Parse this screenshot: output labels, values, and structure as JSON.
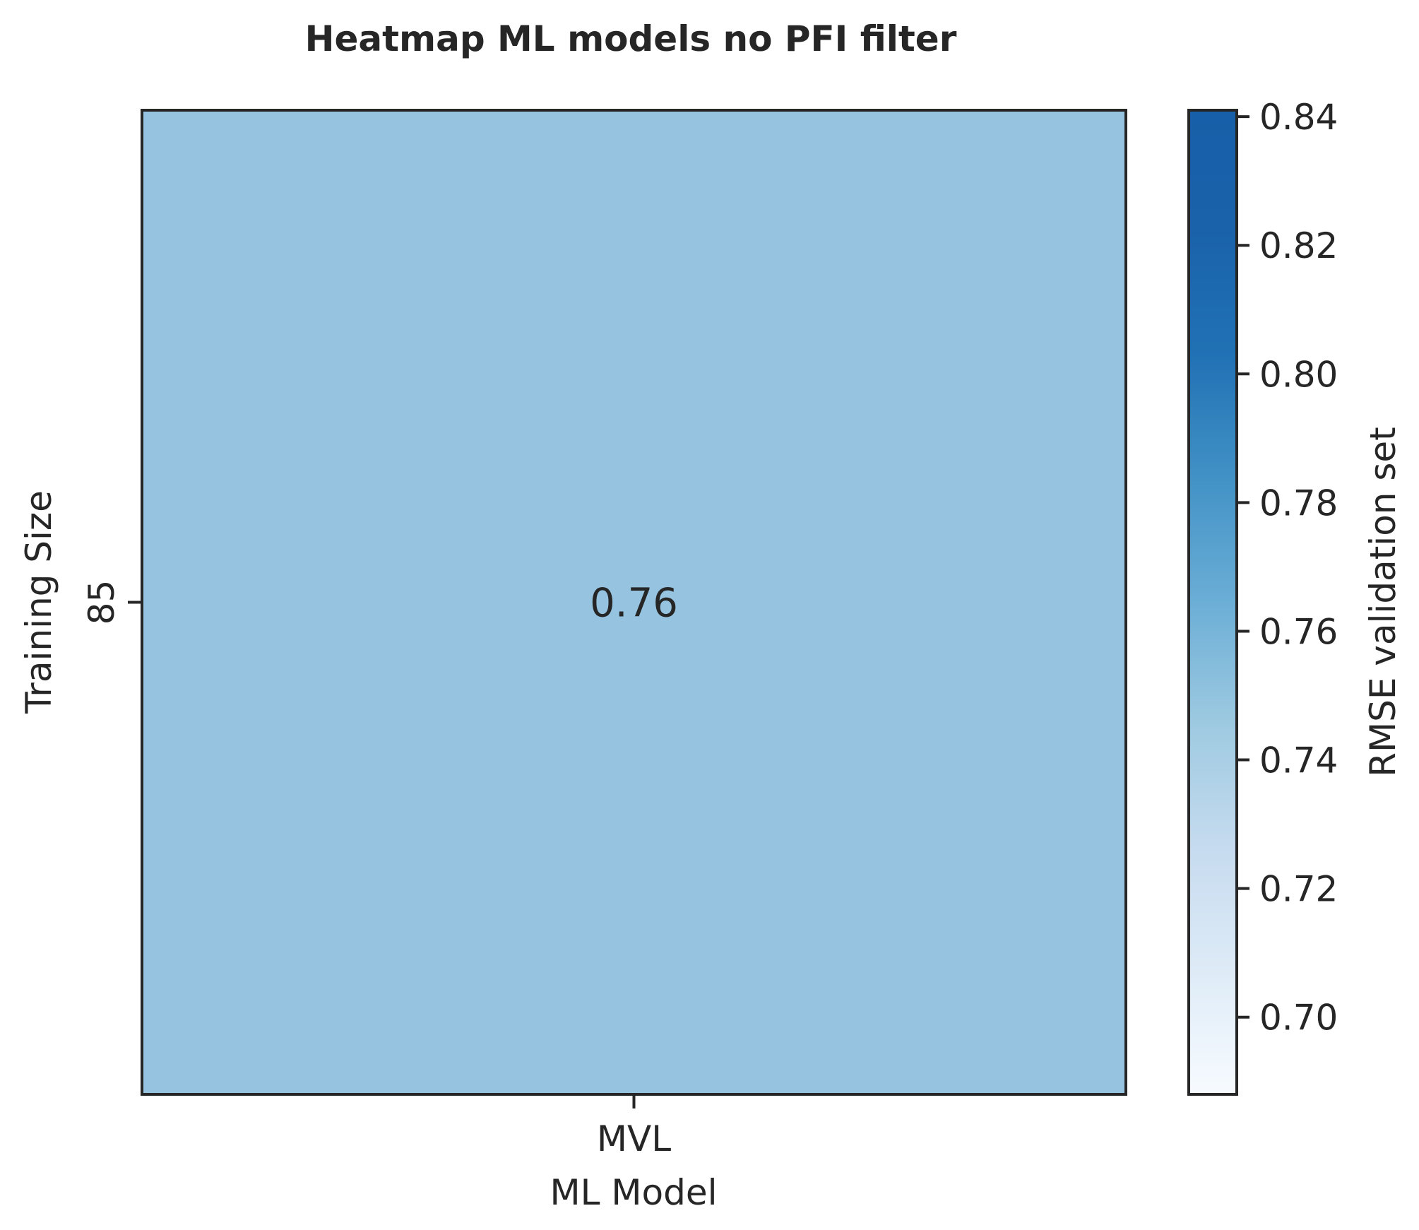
{
  "chart_data": {
    "type": "heatmap",
    "title": "Heatmap ML models no PFI filter",
    "xlabel": "ML Model",
    "ylabel": "Training Size",
    "x_categories": [
      "MVL"
    ],
    "y_categories": [
      "85"
    ],
    "values": [
      [
        0.76
      ]
    ],
    "cell_labels": [
      [
        "0.76"
      ]
    ],
    "colorbar": {
      "label": "RMSE validation set",
      "colormap": "Blues",
      "vmin": 0.688,
      "vmax": 0.841,
      "ticks": [
        0.7,
        0.72,
        0.74,
        0.76,
        0.78,
        0.8,
        0.82,
        0.84
      ],
      "tick_labels": [
        "0.70",
        "0.72",
        "0.74",
        "0.76",
        "0.78",
        "0.80",
        "0.82",
        "0.84"
      ]
    },
    "colors": {
      "cell": "#96c3e0",
      "frame": "#262626",
      "text": "#262626"
    }
  }
}
